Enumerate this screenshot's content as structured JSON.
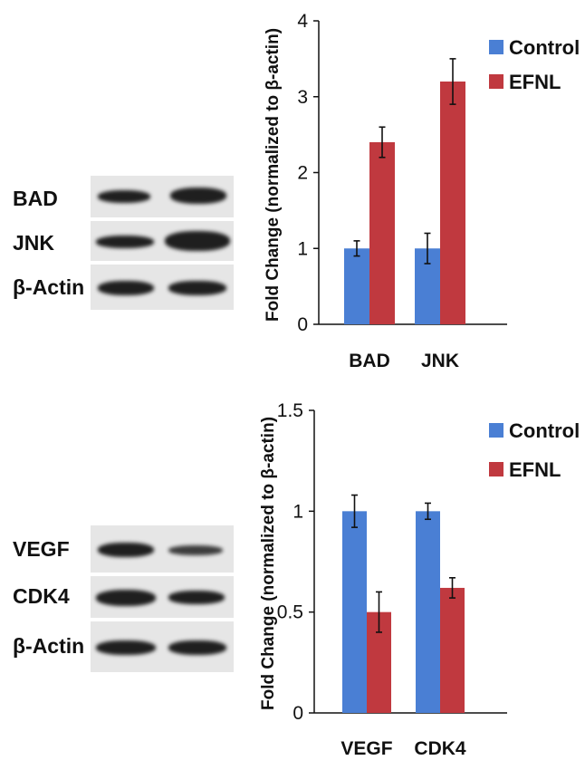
{
  "blots": [
    {
      "panel": "top",
      "rows": [
        {
          "label": "BAD"
        },
        {
          "label": "JNK"
        },
        {
          "label": "β-Actin"
        }
      ]
    },
    {
      "panel": "bottom",
      "rows": [
        {
          "label": "VEGF"
        },
        {
          "label": "CDK4"
        },
        {
          "label": "β-Actin"
        }
      ]
    }
  ],
  "chart_data": [
    {
      "type": "bar",
      "categories": [
        "BAD",
        "JNK"
      ],
      "series": [
        {
          "name": "Control",
          "color": "#4a7fd4",
          "values": [
            1.0,
            1.0
          ],
          "errors": [
            0.1,
            0.2
          ]
        },
        {
          "name": "EFNL",
          "color": "#c0393f",
          "values": [
            2.4,
            3.2
          ],
          "errors": [
            0.2,
            0.3
          ]
        }
      ],
      "ylabel": "Fold Change (normalized to β-actin)",
      "ylim": [
        0,
        4
      ],
      "yticks": [
        "0",
        "1",
        "2",
        "3",
        "4"
      ],
      "grid": false,
      "legend": "top-right"
    },
    {
      "type": "bar",
      "categories": [
        "VEGF",
        "CDK4"
      ],
      "series": [
        {
          "name": "Control",
          "color": "#4a7fd4",
          "values": [
            1.0,
            1.0
          ],
          "errors": [
            0.08,
            0.04
          ]
        },
        {
          "name": "EFNL",
          "color": "#c0393f",
          "values": [
            0.5,
            0.62
          ],
          "errors": [
            0.1,
            0.05
          ]
        }
      ],
      "ylabel": "Fold Change (normalized to β-actin)",
      "ylim": [
        0,
        1.5
      ],
      "yticks": [
        "0",
        "0.5",
        "1",
        "1.5"
      ],
      "grid": false,
      "legend": "top-right"
    }
  ]
}
